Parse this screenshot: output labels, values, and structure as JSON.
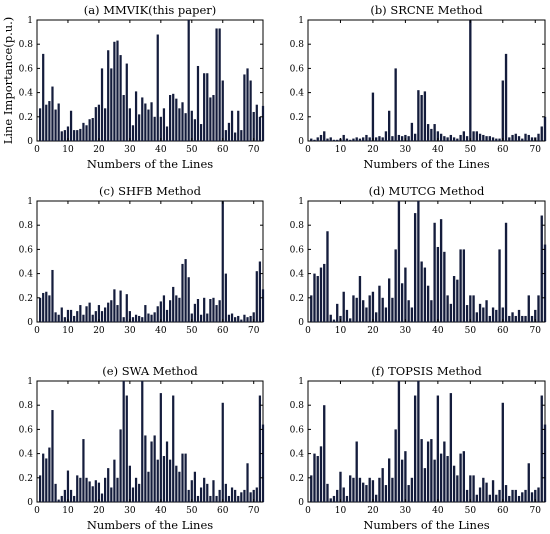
{
  "colors": {
    "bar": "#141c3c",
    "axis": "#000000",
    "background": "#ffffff"
  },
  "chart_data": [
    {
      "type": "bar",
      "title": "(a) MMVIK(this paper)",
      "xlabel": "Numbers of the Lines",
      "ylabel": "Line Importance(p.u.)",
      "xlim": [
        0,
        73
      ],
      "ylim": [
        0,
        1
      ],
      "xticks": [
        "0",
        "10",
        "20",
        "30",
        "40",
        "50",
        "60",
        "70"
      ],
      "yticks": [
        "0",
        "0.2",
        "0.4",
        "0.6",
        "0.8",
        "1"
      ],
      "x": [
        1,
        2,
        3,
        4,
        5,
        6,
        7,
        8,
        9,
        10,
        11,
        12,
        13,
        14,
        15,
        16,
        17,
        18,
        19,
        20,
        21,
        22,
        23,
        24,
        25,
        26,
        27,
        28,
        29,
        30,
        31,
        32,
        33,
        34,
        35,
        36,
        37,
        38,
        39,
        40,
        41,
        42,
        43,
        44,
        45,
        46,
        47,
        48,
        49,
        50,
        51,
        52,
        53,
        54,
        55,
        56,
        57,
        58,
        59,
        60,
        61,
        62,
        63,
        64,
        65,
        66,
        67,
        68,
        69,
        70,
        71,
        72,
        73
      ],
      "values": [
        0.27,
        0.72,
        0.3,
        0.33,
        0.45,
        0.26,
        0.31,
        0.08,
        0.09,
        0.12,
        0.25,
        0.09,
        0.09,
        0.1,
        0.15,
        0.13,
        0.18,
        0.19,
        0.28,
        0.3,
        0.6,
        0.27,
        0.75,
        0.6,
        0.82,
        0.83,
        0.71,
        0.38,
        0.64,
        0.27,
        0.13,
        0.41,
        0.22,
        0.36,
        0.31,
        0.26,
        0.32,
        0.2,
        0.88,
        0.2,
        0.27,
        0.12,
        0.38,
        0.39,
        0.35,
        0.27,
        0.32,
        0.23,
        1.0,
        0.25,
        0.18,
        0.62,
        0.14,
        0.56,
        0.56,
        0.36,
        0.38,
        0.93,
        0.93,
        0.5,
        0.09,
        0.15,
        0.25,
        0.07,
        0.25,
        0.09,
        0.55,
        0.6,
        0.5,
        0.24,
        0.3,
        0.2,
        0.29
      ],
      "grid": false
    },
    {
      "type": "bar",
      "title": "(b) SRCNE Method",
      "xlabel": "Numbers of the Lines",
      "ylabel": "",
      "xlim": [
        0,
        73
      ],
      "ylim": [
        0,
        1
      ],
      "xticks": [
        "0",
        "10",
        "20",
        "30",
        "40",
        "50",
        "60",
        "70"
      ],
      "yticks": [
        "0",
        "0.2",
        "0.4",
        "0.6",
        "0.8",
        "1"
      ],
      "x": [
        1,
        2,
        3,
        4,
        5,
        6,
        7,
        8,
        9,
        10,
        11,
        12,
        13,
        14,
        15,
        16,
        17,
        18,
        19,
        20,
        21,
        22,
        23,
        24,
        25,
        26,
        27,
        28,
        29,
        30,
        31,
        32,
        33,
        34,
        35,
        36,
        37,
        38,
        39,
        40,
        41,
        42,
        43,
        44,
        45,
        46,
        47,
        48,
        49,
        50,
        51,
        52,
        53,
        54,
        55,
        56,
        57,
        58,
        59,
        60,
        61,
        62,
        63,
        64,
        65,
        66,
        67,
        68,
        69,
        70,
        71,
        72,
        73
      ],
      "values": [
        0.02,
        0.01,
        0.03,
        0.05,
        0.08,
        0.02,
        0.03,
        0.01,
        0.01,
        0.02,
        0.05,
        0.02,
        0.01,
        0.02,
        0.03,
        0.02,
        0.03,
        0.05,
        0.03,
        0.4,
        0.03,
        0.04,
        0.03,
        0.08,
        0.25,
        0.04,
        0.6,
        0.05,
        0.04,
        0.05,
        0.04,
        0.15,
        0.06,
        0.42,
        0.38,
        0.41,
        0.14,
        0.1,
        0.14,
        0.08,
        0.06,
        0.04,
        0.03,
        0.05,
        0.03,
        0.02,
        0.05,
        0.08,
        0.04,
        1.0,
        0.08,
        0.08,
        0.06,
        0.05,
        0.04,
        0.04,
        0.03,
        0.02,
        0.02,
        0.5,
        0.72,
        0.03,
        0.05,
        0.06,
        0.04,
        0.02,
        0.06,
        0.05,
        0.03,
        0.03,
        0.06,
        0.12,
        0.2
      ],
      "grid": false
    },
    {
      "type": "bar",
      "title": "(c) SHFB Method",
      "xlabel": "",
      "ylabel": "",
      "xlim": [
        0,
        73
      ],
      "ylim": [
        0,
        1
      ],
      "xticks": [
        "0",
        "10",
        "20",
        "30",
        "40",
        "50",
        "60",
        "70"
      ],
      "yticks": [
        "0",
        "0.2",
        "0.4",
        "0.6",
        "0.8",
        "1"
      ],
      "x": [
        1,
        2,
        3,
        4,
        5,
        6,
        7,
        8,
        9,
        10,
        11,
        12,
        13,
        14,
        15,
        16,
        17,
        18,
        19,
        20,
        21,
        22,
        23,
        24,
        25,
        26,
        27,
        28,
        29,
        30,
        31,
        32,
        33,
        34,
        35,
        36,
        37,
        38,
        39,
        40,
        41,
        42,
        43,
        44,
        45,
        46,
        47,
        48,
        49,
        50,
        51,
        52,
        53,
        54,
        55,
        56,
        57,
        58,
        59,
        60,
        61,
        62,
        63,
        64,
        65,
        66,
        67,
        68,
        69,
        70,
        71,
        72,
        73
      ],
      "values": [
        0.2,
        0.24,
        0.25,
        0.22,
        0.43,
        0.08,
        0.06,
        0.12,
        0.04,
        0.1,
        0.1,
        0.05,
        0.09,
        0.14,
        0.06,
        0.13,
        0.16,
        0.06,
        0.09,
        0.14,
        0.09,
        0.12,
        0.16,
        0.18,
        0.27,
        0.14,
        0.26,
        0.04,
        0.23,
        0.09,
        0.04,
        0.06,
        0.05,
        0.04,
        0.14,
        0.07,
        0.06,
        0.08,
        0.13,
        0.17,
        0.22,
        0.1,
        0.18,
        0.29,
        0.22,
        0.2,
        0.48,
        0.52,
        0.37,
        0.07,
        0.15,
        0.19,
        0.06,
        0.2,
        0.07,
        0.19,
        0.2,
        0.14,
        0.18,
        1.0,
        0.4,
        0.06,
        0.07,
        0.04,
        0.05,
        0.02,
        0.06,
        0.04,
        0.05,
        0.08,
        0.42,
        0.5,
        0.27
      ],
      "grid": false
    },
    {
      "type": "bar",
      "title": "(d) MUTCG Method",
      "xlabel": "",
      "ylabel": "",
      "xlim": [
        0,
        73
      ],
      "ylim": [
        0,
        1
      ],
      "xticks": [
        "0",
        "10",
        "20",
        "30",
        "40",
        "50",
        "60",
        "70"
      ],
      "yticks": [
        "0",
        "0.2",
        "0.4",
        "0.6",
        "0.8",
        "1"
      ],
      "x": [
        1,
        2,
        3,
        4,
        5,
        6,
        7,
        8,
        9,
        10,
        11,
        12,
        13,
        14,
        15,
        16,
        17,
        18,
        19,
        20,
        21,
        22,
        23,
        24,
        25,
        26,
        27,
        28,
        29,
        30,
        31,
        32,
        33,
        34,
        35,
        36,
        37,
        38,
        39,
        40,
        41,
        42,
        43,
        44,
        45,
        46,
        47,
        48,
        49,
        50,
        51,
        52,
        53,
        54,
        55,
        56,
        57,
        58,
        59,
        60,
        61,
        62,
        63,
        64,
        65,
        66,
        67,
        68,
        69,
        70,
        71,
        72,
        73
      ],
      "values": [
        0.22,
        0.4,
        0.38,
        0.45,
        0.48,
        0.75,
        0.06,
        0.02,
        0.15,
        0.05,
        0.25,
        0.1,
        0.03,
        0.22,
        0.2,
        0.38,
        0.18,
        0.12,
        0.22,
        0.25,
        0.08,
        0.3,
        0.2,
        0.12,
        0.36,
        0.2,
        0.6,
        1.0,
        0.32,
        0.45,
        0.18,
        0.12,
        0.9,
        1.0,
        0.5,
        0.45,
        0.3,
        0.18,
        0.82,
        0.62,
        0.85,
        0.58,
        0.22,
        0.15,
        0.38,
        0.35,
        0.6,
        0.6,
        0.14,
        0.22,
        0.22,
        0.08,
        0.15,
        0.12,
        0.18,
        0.05,
        0.12,
        0.1,
        0.6,
        0.12,
        0.82,
        0.05,
        0.08,
        0.05,
        0.1,
        0.05,
        0.05,
        0.22,
        0.05,
        0.1,
        0.22,
        0.88,
        0.64
      ],
      "grid": false
    },
    {
      "type": "bar",
      "title": "(e) SWA Method",
      "xlabel": "Numbers of the Lines",
      "ylabel": "",
      "xlim": [
        0,
        73
      ],
      "ylim": [
        0,
        1
      ],
      "xticks": [
        "0",
        "10",
        "20",
        "30",
        "40",
        "50",
        "60",
        "70"
      ],
      "yticks": [
        "0",
        "0.2",
        "0.4",
        "0.6",
        "0.8",
        "1"
      ],
      "x": [
        1,
        2,
        3,
        4,
        5,
        6,
        7,
        8,
        9,
        10,
        11,
        12,
        13,
        14,
        15,
        16,
        17,
        18,
        19,
        20,
        21,
        22,
        23,
        24,
        25,
        26,
        27,
        28,
        29,
        30,
        31,
        32,
        33,
        34,
        35,
        36,
        37,
        38,
        39,
        40,
        41,
        42,
        43,
        44,
        45,
        46,
        47,
        48,
        49,
        50,
        51,
        52,
        53,
        54,
        55,
        56,
        57,
        58,
        59,
        60,
        61,
        62,
        63,
        64,
        65,
        66,
        67,
        68,
        69,
        70,
        71,
        72,
        73
      ],
      "values": [
        0.22,
        0.4,
        0.36,
        0.45,
        0.76,
        0.15,
        0.02,
        0.05,
        0.1,
        0.26,
        0.1,
        0.05,
        0.22,
        0.2,
        0.52,
        0.2,
        0.17,
        0.13,
        0.18,
        0.16,
        0.07,
        0.2,
        0.28,
        0.12,
        0.35,
        0.2,
        0.6,
        1.0,
        0.88,
        0.3,
        0.12,
        0.2,
        0.15,
        1.0,
        0.55,
        0.25,
        0.5,
        0.55,
        0.35,
        0.9,
        0.38,
        0.5,
        0.35,
        0.88,
        0.3,
        0.25,
        0.4,
        0.4,
        0.1,
        0.18,
        0.25,
        0.05,
        0.12,
        0.2,
        0.15,
        0.05,
        0.18,
        0.05,
        0.1,
        0.82,
        0.15,
        0.05,
        0.12,
        0.1,
        0.05,
        0.08,
        0.1,
        0.32,
        0.08,
        0.1,
        0.12,
        0.88,
        0.64
      ],
      "grid": false
    },
    {
      "type": "bar",
      "title": "(f) TOPSIS Method",
      "xlabel": "Numbers of the Lines",
      "ylabel": "",
      "xlim": [
        0,
        73
      ],
      "ylim": [
        0,
        1
      ],
      "xticks": [
        "0",
        "10",
        "20",
        "30",
        "40",
        "50",
        "60",
        "70"
      ],
      "yticks": [
        "0",
        "0.2",
        "0.4",
        "0.6",
        "0.8",
        "1"
      ],
      "x": [
        1,
        2,
        3,
        4,
        5,
        6,
        7,
        8,
        9,
        10,
        11,
        12,
        13,
        14,
        15,
        16,
        17,
        18,
        19,
        20,
        21,
        22,
        23,
        24,
        25,
        26,
        27,
        28,
        29,
        30,
        31,
        32,
        33,
        34,
        35,
        36,
        37,
        38,
        39,
        40,
        41,
        42,
        43,
        44,
        45,
        46,
        47,
        48,
        49,
        50,
        51,
        52,
        53,
        54,
        55,
        56,
        57,
        58,
        59,
        60,
        61,
        62,
        63,
        64,
        65,
        66,
        67,
        68,
        69,
        70,
        71,
        72,
        73
      ],
      "values": [
        0.22,
        0.4,
        0.38,
        0.46,
        0.8,
        0.15,
        0.03,
        0.05,
        0.1,
        0.25,
        0.12,
        0.05,
        0.22,
        0.2,
        0.5,
        0.2,
        0.16,
        0.14,
        0.2,
        0.18,
        0.06,
        0.2,
        0.28,
        0.14,
        0.36,
        0.2,
        0.6,
        1.0,
        0.35,
        0.42,
        0.14,
        0.2,
        0.88,
        1.0,
        0.52,
        0.28,
        0.5,
        0.52,
        0.35,
        0.88,
        0.4,
        0.5,
        0.38,
        0.9,
        0.3,
        0.22,
        0.4,
        0.42,
        0.1,
        0.22,
        0.22,
        0.06,
        0.12,
        0.2,
        0.16,
        0.06,
        0.18,
        0.06,
        0.1,
        0.82,
        0.14,
        0.05,
        0.1,
        0.1,
        0.05,
        0.08,
        0.1,
        0.32,
        0.08,
        0.1,
        0.12,
        0.88,
        0.64
      ],
      "grid": false
    }
  ]
}
